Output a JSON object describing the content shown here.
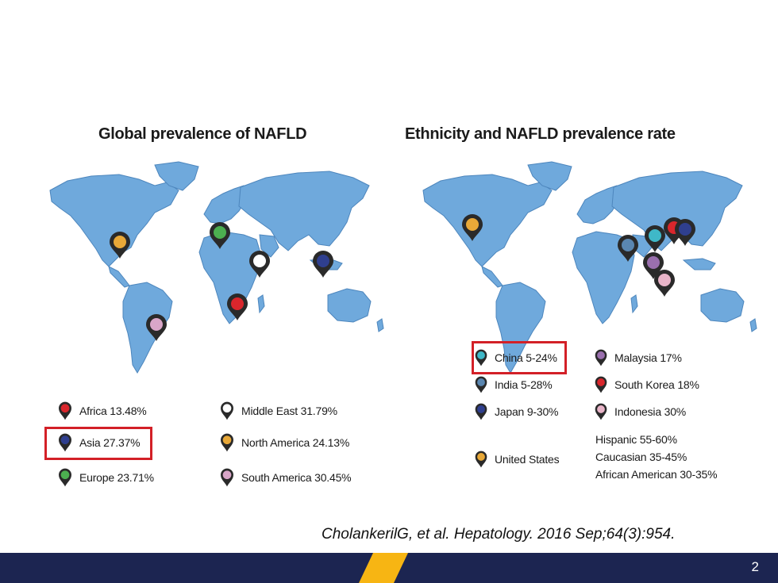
{
  "left": {
    "title": "Global prevalence of NAFLD",
    "legend": [
      {
        "label": "Africa 13.48%",
        "color": "#d9262c"
      },
      {
        "label": "Asia 27.37%",
        "color": "#2f3f8f"
      },
      {
        "label": "Europe 23.71%",
        "color": "#4caf50"
      },
      {
        "label": "Middle East 31.79%",
        "color": "#ffffff"
      },
      {
        "label": "North America 24.13%",
        "color": "#e8a838"
      },
      {
        "label": "South America 30.45%",
        "color": "#d9a6c8"
      }
    ]
  },
  "right": {
    "title": "Ethnicity and NAFLD prevalence rate",
    "legend": [
      {
        "label": "China 5-24%",
        "color": "#3fb8c8"
      },
      {
        "label": "India 5-28%",
        "color": "#5a86b0"
      },
      {
        "label": "Japan 9-30%",
        "color": "#2f3f8f"
      },
      {
        "label": "United States",
        "color": "#e8a838"
      },
      {
        "label": "Malaysia 17%",
        "color": "#9a6fae"
      },
      {
        "label": "South Korea 18%",
        "color": "#d9262c"
      },
      {
        "label": "Indonesia 30%",
        "color": "#e8b4c8"
      }
    ],
    "us_ethnicity": [
      "Hispanic 55-60%",
      "Caucasian 35-45%",
      "African American 30-35%"
    ]
  },
  "citation": "CholankerilG,  et al. Hepatology.  2016 Sep;64(3):954.",
  "page_number": "2",
  "colors": {
    "ocean_map": "#6fa9dc",
    "highlight": "#d32027",
    "footer": "#1c2551",
    "accent": "#f7b513"
  }
}
